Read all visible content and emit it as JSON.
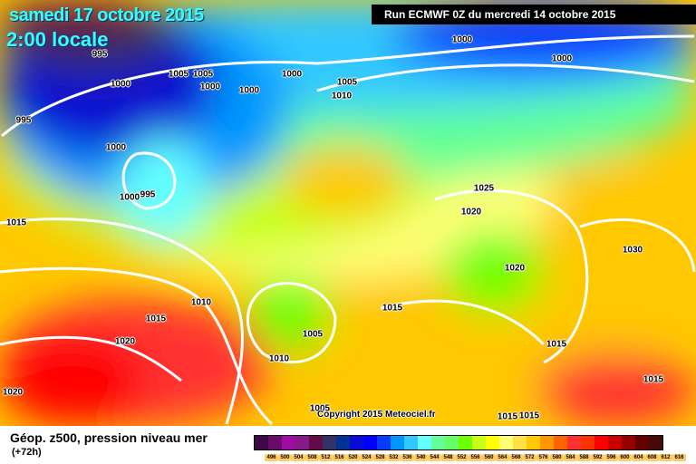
{
  "header": {
    "date": "samedi 17 octobre 2015",
    "time": "2:00 locale",
    "run": "Run ECMWF 0Z du mercredi 14 octobre 2015"
  },
  "footer": {
    "field_title": "Géop. z500, pression niveau mer",
    "lead_time": "(+72h)",
    "copyright": "Copyright 2015 Meteociel.fr"
  },
  "legend": {
    "colors": [
      "#3d0a45",
      "#6a0a6a",
      "#a00aa5",
      "#881a88",
      "#640a46",
      "#323264",
      "#003296",
      "#0a0ad2",
      "#0000ff",
      "#0a3cff",
      "#0096ff",
      "#32c8ff",
      "#64ffff",
      "#64ff96",
      "#64ff64",
      "#6eff00",
      "#c8ff14",
      "#ffff00",
      "#ffff78",
      "#ffe146",
      "#ffc800",
      "#ff9600",
      "#ff6400",
      "#ff3232",
      "#ff3200",
      "#ff0000",
      "#c80000",
      "#960000",
      "#640000",
      "#460a0a",
      "#000000"
    ],
    "ticks": [
      "496",
      "500",
      "504",
      "508",
      "512",
      "516",
      "520",
      "524",
      "528",
      "532",
      "536",
      "540",
      "544",
      "548",
      "552",
      "556",
      "560",
      "564",
      "568",
      "572",
      "576",
      "580",
      "584",
      "588",
      "592",
      "596",
      "600",
      "604",
      "608",
      "612",
      "616"
    ]
  },
  "isobar_labels": [
    "995",
    "1005",
    "1005",
    "1000",
    "1000",
    "1000",
    "1000",
    "995",
    "1000",
    "995",
    "1000",
    "1015",
    "1010",
    "1015",
    "1020",
    "1020",
    "1010",
    "1005",
    "1005",
    "1015",
    "1005",
    "1010",
    "1000",
    "1000",
    "1025",
    "1020",
    "1020",
    "1030",
    "1015",
    "1015",
    "1015",
    "1015"
  ]
}
